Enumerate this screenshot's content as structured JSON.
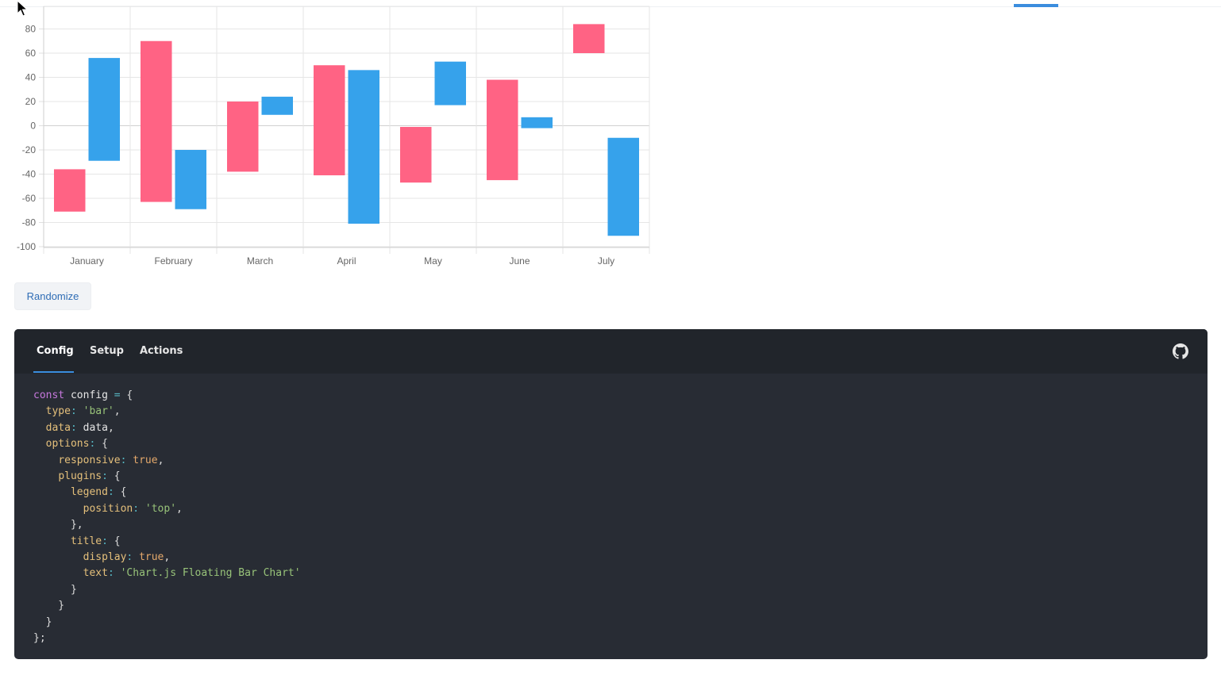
{
  "chart_data": {
    "type": "bar",
    "floating": true,
    "categories": [
      "January",
      "February",
      "March",
      "April",
      "May",
      "June",
      "July"
    ],
    "series": [
      {
        "color": "#ff6384",
        "values": [
          [
            -36,
            -71
          ],
          [
            70,
            -63
          ],
          [
            20,
            -38
          ],
          [
            50,
            -41
          ],
          [
            -1,
            -47
          ],
          [
            38,
            -45
          ],
          [
            84,
            60
          ]
        ]
      },
      {
        "color": "#36a2eb",
        "values": [
          [
            56,
            -29
          ],
          [
            -20,
            -69
          ],
          [
            24,
            9
          ],
          [
            46,
            -81
          ],
          [
            53,
            17
          ],
          [
            7,
            -2
          ],
          [
            -10,
            -91
          ]
        ]
      }
    ],
    "yticks": [
      80,
      60,
      40,
      20,
      0,
      -20,
      -40,
      -60,
      -80,
      -100
    ],
    "ylim": [
      -100,
      100
    ],
    "grid": true
  },
  "controls": {
    "randomize_label": "Randomize"
  },
  "panel": {
    "tabs": [
      "Config",
      "Setup",
      "Actions"
    ],
    "active_tab": "Config",
    "github_icon": "github-icon"
  },
  "code": {
    "lines": [
      "const config = {",
      "  type: 'bar',",
      "  data: data,",
      "  options: {",
      "    responsive: true,",
      "    plugins: {",
      "      legend: {",
      "        position: 'top',",
      "      },",
      "      title: {",
      "        display: true,",
      "        text: 'Chart.js Floating Bar Chart'",
      "      }",
      "    }",
      "  }",
      "};"
    ]
  }
}
